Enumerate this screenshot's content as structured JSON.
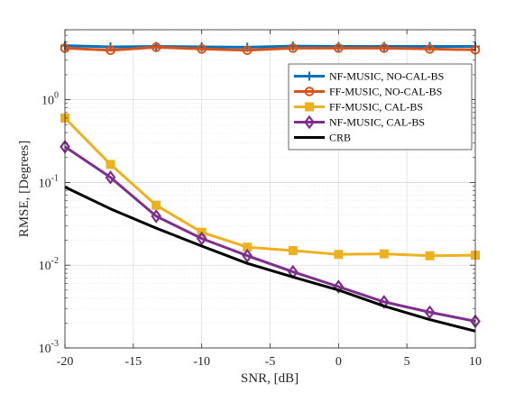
{
  "chart_data": {
    "type": "line",
    "title": "",
    "xlabel": "SNR, [dB]",
    "ylabel": "RMSE, [Degrees]",
    "xlim": [
      -20,
      10
    ],
    "ylim": [
      0.001,
      7
    ],
    "yscale": "log",
    "grid": true,
    "legend_position": "top-right",
    "x_ticks": [
      -20,
      -15,
      -10,
      -5,
      0,
      5,
      10
    ],
    "x_tick_labels": [
      "-20",
      "-15",
      "-10",
      "-5",
      "0",
      "5",
      "10"
    ],
    "y_ticks": [
      {
        "value": 1,
        "base": "10",
        "exp": "0"
      },
      {
        "value": 0.1,
        "base": "10",
        "exp": "-1"
      },
      {
        "value": 0.01,
        "base": "10",
        "exp": "-2"
      },
      {
        "value": 0.001,
        "base": "10",
        "exp": "-3"
      }
    ],
    "series": [
      {
        "name": "NF-MUSIC, NO-CAL-BS",
        "color": "#0072BD",
        "marker": "plus",
        "x": [
          -20,
          -16.67,
          -13.33,
          -10,
          -6.67,
          -3.33,
          0,
          3.33,
          6.67,
          10
        ],
        "values": [
          4.5,
          4.35,
          4.4,
          4.35,
          4.3,
          4.45,
          4.4,
          4.4,
          4.4,
          4.4
        ]
      },
      {
        "name": "FF-MUSIC, NO-CAL-BS",
        "color": "#D95319",
        "marker": "circle",
        "x": [
          -20,
          -16.67,
          -13.33,
          -10,
          -6.67,
          -3.33,
          0,
          3.33,
          6.67,
          10
        ],
        "values": [
          4.2,
          3.95,
          4.3,
          4.1,
          3.95,
          4.2,
          4.2,
          4.2,
          4.1,
          4.0
        ]
      },
      {
        "name": "FF-MUSIC, CAL-BS",
        "color": "#EDB120",
        "marker": "square",
        "x": [
          -20,
          -16.67,
          -13.33,
          -10,
          -6.67,
          -3.33,
          0,
          3.33,
          6.67,
          10
        ],
        "values": [
          0.6,
          0.165,
          0.053,
          0.025,
          0.0165,
          0.015,
          0.0135,
          0.0137,
          0.013,
          0.0132
        ]
      },
      {
        "name": "NF-MUSIC, CAL-BS",
        "color": "#7E2F8E",
        "marker": "diamond",
        "x": [
          -20,
          -16.67,
          -13.33,
          -10,
          -6.67,
          -3.33,
          0,
          3.33,
          6.67,
          10
        ],
        "values": [
          0.27,
          0.115,
          0.039,
          0.021,
          0.013,
          0.0083,
          0.0055,
          0.0036,
          0.0027,
          0.0021
        ]
      },
      {
        "name": "CRB",
        "color": "#000000",
        "marker": "none",
        "x": [
          -20,
          -16.67,
          -13.33,
          -10,
          -6.67,
          -3.33,
          0,
          3.33,
          6.67,
          10
        ],
        "values": [
          0.088,
          0.048,
          0.028,
          0.017,
          0.0105,
          0.0072,
          0.005,
          0.0032,
          0.0022,
          0.0016
        ]
      }
    ]
  }
}
